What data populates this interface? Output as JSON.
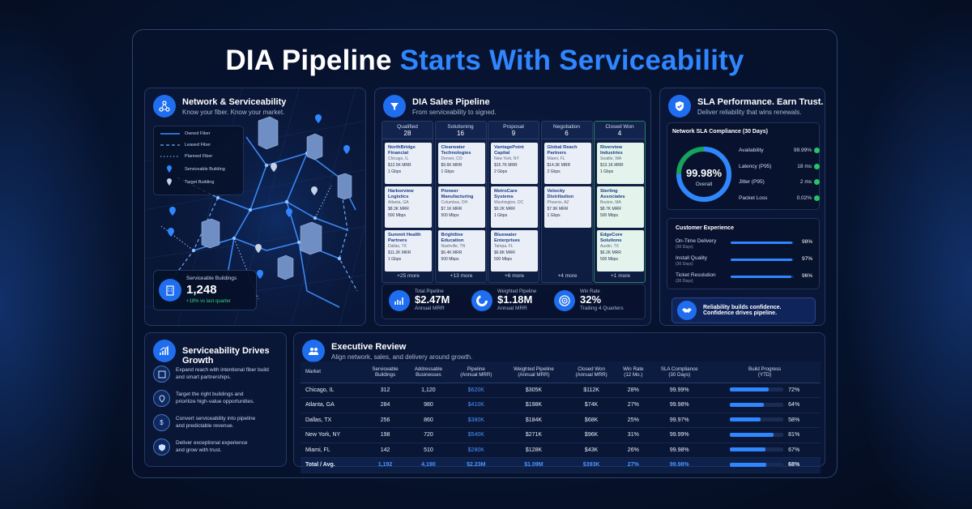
{
  "title": {
    "part1": "DIA Pipeline",
    "part2": "Starts With Serviceability"
  },
  "network": {
    "title": "Network & Serviceability",
    "subtitle": "Know your fiber. Know your market.",
    "legend": [
      "Owned Fiber",
      "Leased Fiber",
      "Planned Fiber",
      "Serviceable Building",
      "Target Building"
    ],
    "stat_label": "Serviceable Buildings",
    "stat_value": "1,248",
    "stat_delta": "+18% vs last quarter"
  },
  "pipeline": {
    "title": "DIA Sales Pipeline",
    "subtitle": "From serviceability to signed.",
    "columns": [
      {
        "name": "Qualified",
        "count": "28",
        "more": "+25 more",
        "cards": [
          {
            "name": "NorthBridge Financial",
            "loc": "Chicago, IL",
            "mrr": "$12.5K MRR",
            "bw": "1 Gbps"
          },
          {
            "name": "Harborview Logistics",
            "loc": "Atlanta, GA",
            "mrr": "$8.3K MRR",
            "bw": "500 Mbps"
          },
          {
            "name": "Summit Health Partners",
            "loc": "Dallas, TX",
            "mrr": "$11.2K MRR",
            "bw": "1 Gbps"
          }
        ]
      },
      {
        "name": "Solutioning",
        "count": "16",
        "more": "+13 more",
        "cards": [
          {
            "name": "Clearwater Technologies",
            "loc": "Denver, CO",
            "mrr": "$9.6K MRR",
            "bw": "1 Gbps"
          },
          {
            "name": "Pioneer Manufacturing",
            "loc": "Columbus, OH",
            "mrr": "$7.1K MRR",
            "bw": "500 Mbps"
          },
          {
            "name": "Brightline Education",
            "loc": "Nashville, TN",
            "mrr": "$6.4K MRR",
            "bw": "500 Mbps"
          }
        ]
      },
      {
        "name": "Proposal",
        "count": "9",
        "more": "+6 more",
        "cards": [
          {
            "name": "VantagePoint Capital",
            "loc": "New York, NY",
            "mrr": "$15.7K MRR",
            "bw": "2 Gbps"
          },
          {
            "name": "MetroCare Systems",
            "loc": "Washington, DC",
            "mrr": "$9.2K MRR",
            "bw": "1 Gbps"
          },
          {
            "name": "Bluewater Enterprises",
            "loc": "Tampa, FL",
            "mrr": "$6.8K MRR",
            "bw": "500 Mbps"
          }
        ]
      },
      {
        "name": "Negotiation",
        "count": "6",
        "more": "+4 more",
        "cards": [
          {
            "name": "Global Reach Partners",
            "loc": "Miami, FL",
            "mrr": "$14.3K MRR",
            "bw": "2 Gbps"
          },
          {
            "name": "Velocity Distribution",
            "loc": "Phoenix, AZ",
            "mrr": "$7.9K MRR",
            "bw": "1 Gbps"
          }
        ]
      },
      {
        "name": "Closed Won",
        "count": "4",
        "more": "+1 more",
        "cards": [
          {
            "name": "Riverview Industries",
            "loc": "Seattle, WA",
            "mrr": "$13.1K MRR",
            "bw": "1 Gbps"
          },
          {
            "name": "Sterling Associates",
            "loc": "Boston, MA",
            "mrr": "$8.7K MRR",
            "bw": "500 Mbps"
          },
          {
            "name": "EdgeCore Solutions",
            "loc": "Austin, TX",
            "mrr": "$6.2K MRR",
            "bw": "500 Mbps"
          }
        ]
      }
    ],
    "kpis": [
      {
        "label": "Total Pipeline",
        "value": "$2.47M",
        "sub": "Annual MRR"
      },
      {
        "label": "Weighted Pipeline",
        "value": "$1.18M",
        "sub": "Annual MRR"
      },
      {
        "label": "Win Rate",
        "value": "32%",
        "sub": "Trailing 4 Quarters"
      }
    ]
  },
  "sla": {
    "title": "SLA Performance. Earn Trust.",
    "subtitle": "Deliver reliability that wins renewals.",
    "box_title": "Network SLA Compliance (30 Days)",
    "gauge_value": "99.98%",
    "gauge_label": "Overall",
    "gauge_fraction": 0.9998,
    "metrics": [
      {
        "label": "Availability",
        "value": "99.99%"
      },
      {
        "label": "Latency (P95)",
        "value": "18 ms"
      },
      {
        "label": "Jitter (P95)",
        "value": "2 ms"
      },
      {
        "label": "Packet Loss",
        "value": "0.02%"
      }
    ],
    "cx_title": "Customer Experience",
    "cx": [
      {
        "label": "On-Time Delivery",
        "sub": "(30 Days)",
        "value": "98%",
        "pct": 98
      },
      {
        "label": "Install Quality",
        "sub": "(30 Days)",
        "value": "97%",
        "pct": 97
      },
      {
        "label": "Ticket Resolution",
        "sub": "(30 Days)",
        "value": "96%",
        "pct": 96
      }
    ],
    "banner1": "Reliability builds confidence.",
    "banner2": "Confidence drives pipeline."
  },
  "growth": {
    "title": "Serviceability Drives Growth",
    "items": [
      {
        "l1": "Expand reach with intentional fiber build",
        "l2": "and smart partnerships."
      },
      {
        "l1": "Target the right buildings and",
        "l2": "prioritize high-value opportunities."
      },
      {
        "l1": "Convert serviceability into pipeline",
        "l2": "and predictable revenue."
      },
      {
        "l1": "Deliver exceptional experience",
        "l2": "and grow with trust."
      }
    ]
  },
  "exec": {
    "title": "Executive Review",
    "subtitle": "Align network, sales, and delivery around growth.",
    "headers": [
      [
        "Market",
        ""
      ],
      [
        "Serviceable",
        "Buildings"
      ],
      [
        "Addressable",
        "Businesses"
      ],
      [
        "Pipeline",
        "(Annual MRR)"
      ],
      [
        "Weighted Pipeline",
        "(Annual MRR)"
      ],
      [
        "Closed Won",
        "(Annual MRR)"
      ],
      [
        "Win Rate",
        "(12 Mo.)"
      ],
      [
        "SLA Compliance",
        "(30 Days)"
      ],
      [
        "Build Progress",
        "(YTD)"
      ]
    ],
    "rows": [
      {
        "market": "Chicago, IL",
        "bldg": "312",
        "biz": "1,120",
        "pipe": "$620K",
        "wpipe": "$305K",
        "won": "$112K",
        "win": "28%",
        "sla": "99.99%",
        "prog": "72%",
        "p": 72
      },
      {
        "market": "Atlanta, GA",
        "bldg": "284",
        "biz": "980",
        "pipe": "$410K",
        "wpipe": "$198K",
        "won": "$74K",
        "win": "27%",
        "sla": "99.98%",
        "prog": "64%",
        "p": 64
      },
      {
        "market": "Dallas, TX",
        "bldg": "256",
        "biz": "860",
        "pipe": "$380K",
        "wpipe": "$184K",
        "won": "$68K",
        "win": "25%",
        "sla": "99.97%",
        "prog": "58%",
        "p": 58
      },
      {
        "market": "New York, NY",
        "bldg": "198",
        "biz": "720",
        "pipe": "$540K",
        "wpipe": "$271K",
        "won": "$96K",
        "win": "31%",
        "sla": "99.99%",
        "prog": "81%",
        "p": 81
      },
      {
        "market": "Miami, FL",
        "bldg": "142",
        "biz": "510",
        "pipe": "$280K",
        "wpipe": "$128K",
        "won": "$43K",
        "win": "26%",
        "sla": "99.98%",
        "prog": "67%",
        "p": 67
      }
    ],
    "total": {
      "market": "Total / Avg.",
      "bldg": "1,192",
      "biz": "4,190",
      "pipe": "$2.23M",
      "wpipe": "$1.09M",
      "won": "$393K",
      "win": "27%",
      "sla": "99.98%",
      "prog": "68%",
      "p": 68
    }
  }
}
